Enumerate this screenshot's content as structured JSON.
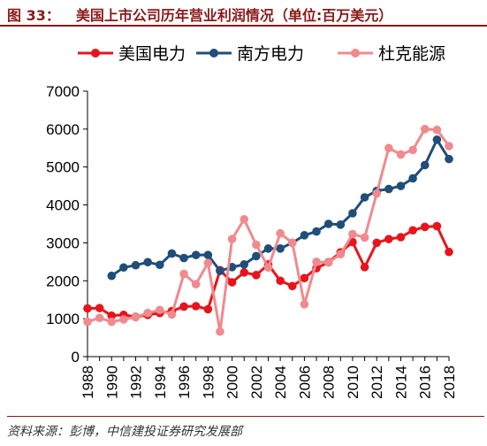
{
  "figure": {
    "number": "图 33：",
    "title": "美国上市公司历年营业利润情况（单位:百万美元）",
    "source": "资料来源：彭博，中信建投证券研究发展部"
  },
  "chart_data": {
    "type": "line",
    "title": "美国上市公司历年营业利润情况（单位:百万美元）",
    "xlabel": "",
    "ylabel": "",
    "ylim": [
      0,
      7000
    ],
    "yticks": [
      0,
      1000,
      2000,
      3000,
      4000,
      5000,
      6000,
      7000
    ],
    "xlim": [
      1988,
      2018
    ],
    "xticks": [
      1988,
      1990,
      1992,
      1994,
      1996,
      1998,
      2000,
      2002,
      2004,
      2006,
      2008,
      2010,
      2012,
      2014,
      2016,
      2018
    ],
    "legend_position": "top",
    "grid": false,
    "years": [
      1988,
      1989,
      1990,
      1991,
      1992,
      1993,
      1994,
      1995,
      1996,
      1997,
      1998,
      1999,
      2000,
      2001,
      2002,
      2003,
      2004,
      2005,
      2006,
      2007,
      2008,
      2009,
      2010,
      2011,
      2012,
      2013,
      2014,
      2015,
      2016,
      2017,
      2018
    ],
    "series": [
      {
        "name": "美国电力",
        "color": "#e8141c",
        "values": [
          1270,
          1280,
          1080,
          1100,
          1050,
          1100,
          1150,
          1200,
          1320,
          1330,
          1250,
          2280,
          1960,
          2220,
          2150,
          2430,
          2000,
          1860,
          2070,
          2330,
          2490,
          2750,
          3020,
          2360,
          3000,
          3100,
          3150,
          3330,
          3420,
          3440,
          2760
        ]
      },
      {
        "name": "南方电力",
        "color": "#1f4e79",
        "values": [
          null,
          null,
          2130,
          2350,
          2410,
          2490,
          2420,
          2720,
          2600,
          2680,
          2680,
          2260,
          2360,
          2430,
          2650,
          2850,
          2850,
          3000,
          3200,
          3300,
          3500,
          3480,
          3780,
          4200,
          4370,
          4420,
          4500,
          4700,
          5050,
          5720,
          5210
        ]
      },
      {
        "name": "杜克能源",
        "color": "#f08a8e",
        "values": [
          920,
          1020,
          920,
          980,
          1040,
          1150,
          1230,
          1110,
          2180,
          1910,
          2470,
          660,
          3100,
          3620,
          2950,
          2350,
          3250,
          3000,
          1380,
          2500,
          2480,
          2700,
          3230,
          3140,
          4300,
          5500,
          5330,
          5450,
          6000,
          5980,
          5550
        ]
      }
    ]
  }
}
